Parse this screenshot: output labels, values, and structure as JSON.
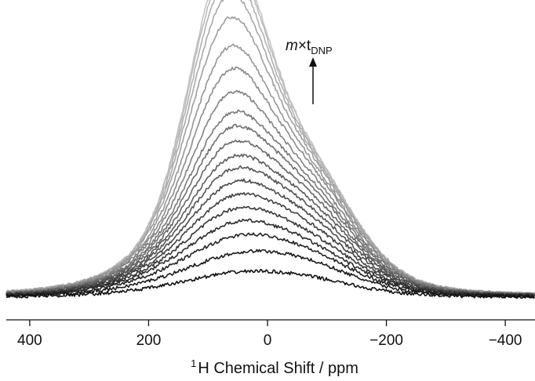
{
  "chart_data": {
    "type": "line",
    "title": "",
    "xlabel": {
      "superscript": "1",
      "text": "H Chemical Shift / ppm"
    },
    "ylabel": "",
    "x_reversed": true,
    "xlim": [
      450,
      -450
    ],
    "x_ticks": [
      400,
      200,
      0,
      -200,
      -400
    ],
    "x_tick_labels": [
      "400",
      "200",
      "0",
      "−200",
      "−400"
    ],
    "y_axis_visible": false,
    "grid": false,
    "legend": "none",
    "annotation": {
      "italic_part": "m",
      "mid_part": "×t",
      "subscript": "DNP",
      "arrow": "up"
    },
    "line_color_range": {
      "first": "#111111",
      "last": "#c4c4c4"
    },
    "series_count": 20,
    "lineshape": {
      "peak_center_ppm": 70,
      "peak_width_ppm": 62,
      "shoulder_center_ppm": -70,
      "shoulder_width_ppm": 75,
      "broad_center_ppm": 30,
      "broad_width_ppm": 130
    },
    "series_components": [
      {
        "peak": 0.01,
        "shoulder": 0.02,
        "broad": 0.075
      },
      {
        "peak": 0.015,
        "shoulder": 0.035,
        "broad": 0.135
      },
      {
        "peak": 0.03,
        "shoulder": 0.04,
        "broad": 0.18
      },
      {
        "peak": 0.05,
        "shoulder": 0.045,
        "broad": 0.21
      },
      {
        "peak": 0.075,
        "shoulder": 0.06,
        "broad": 0.23
      },
      {
        "peak": 0.1,
        "shoulder": 0.075,
        "broad": 0.25
      },
      {
        "peak": 0.13,
        "shoulder": 0.09,
        "broad": 0.265
      },
      {
        "peak": 0.16,
        "shoulder": 0.105,
        "broad": 0.28
      },
      {
        "peak": 0.19,
        "shoulder": 0.12,
        "broad": 0.29
      },
      {
        "peak": 0.23,
        "shoulder": 0.135,
        "broad": 0.3
      },
      {
        "peak": 0.27,
        "shoulder": 0.15,
        "broad": 0.31
      },
      {
        "peak": 0.31,
        "shoulder": 0.16,
        "broad": 0.32
      },
      {
        "peak": 0.37,
        "shoulder": 0.17,
        "broad": 0.33
      },
      {
        "peak": 0.45,
        "shoulder": 0.19,
        "broad": 0.33
      },
      {
        "peak": 0.53,
        "shoulder": 0.2,
        "broad": 0.33
      },
      {
        "peak": 0.63,
        "shoulder": 0.21,
        "broad": 0.33
      },
      {
        "peak": 0.72,
        "shoulder": 0.22,
        "broad": 0.32
      },
      {
        "peak": 0.79,
        "shoulder": 0.23,
        "broad": 0.31
      },
      {
        "peak": 0.84,
        "shoulder": 0.235,
        "broad": 0.31
      },
      {
        "peak": 0.88,
        "shoulder": 0.24,
        "broad": 0.3
      }
    ]
  }
}
